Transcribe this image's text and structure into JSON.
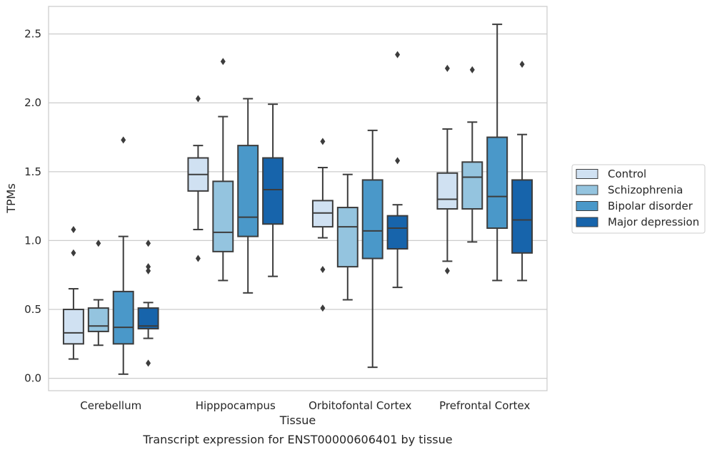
{
  "caption": "Transcript expression for ENST00000606401 by tissue",
  "chart_data": {
    "type": "boxplot",
    "xlabel": "Tissue",
    "ylabel": "TPMs",
    "ylim": [
      -0.09,
      2.7
    ],
    "yticks": [
      "0.0",
      "0.5",
      "1.0",
      "1.5",
      "2.0",
      "2.5"
    ],
    "grid": "horizontal",
    "legend_position": "right",
    "categories": [
      "Cerebellum",
      "Hipppocampus",
      "Orbitofontal Cortex",
      "Prefrontal Cortex"
    ],
    "series": [
      {
        "name": "Control",
        "color": "#d0e1f2",
        "boxes": [
          {
            "whislo": 0.14,
            "q1": 0.25,
            "med": 0.33,
            "q3": 0.5,
            "whishi": 0.65,
            "fliers": [
              0.91,
              1.08
            ]
          },
          {
            "whislo": 1.08,
            "q1": 1.36,
            "med": 1.48,
            "q3": 1.6,
            "whishi": 1.69,
            "fliers": [
              0.87,
              2.03
            ]
          },
          {
            "whislo": 1.02,
            "q1": 1.1,
            "med": 1.2,
            "q3": 1.29,
            "whishi": 1.53,
            "fliers": [
              0.51,
              0.79,
              1.72
            ]
          },
          {
            "whislo": 0.85,
            "q1": 1.23,
            "med": 1.3,
            "q3": 1.49,
            "whishi": 1.81,
            "fliers": [
              0.78,
              2.25
            ]
          }
        ]
      },
      {
        "name": "Schizophrenia",
        "color": "#94c4df",
        "boxes": [
          {
            "whislo": 0.24,
            "q1": 0.34,
            "med": 0.38,
            "q3": 0.51,
            "whishi": 0.57,
            "fliers": [
              0.98
            ]
          },
          {
            "whislo": 0.71,
            "q1": 0.92,
            "med": 1.06,
            "q3": 1.43,
            "whishi": 1.9,
            "fliers": [
              2.3
            ]
          },
          {
            "whislo": 0.57,
            "q1": 0.81,
            "med": 1.1,
            "q3": 1.24,
            "whishi": 1.48,
            "fliers": []
          },
          {
            "whislo": 0.99,
            "q1": 1.23,
            "med": 1.46,
            "q3": 1.57,
            "whishi": 1.86,
            "fliers": [
              2.24
            ]
          }
        ]
      },
      {
        "name": "Bipolar disorder",
        "color": "#4a98c9",
        "boxes": [
          {
            "whislo": 0.03,
            "q1": 0.25,
            "med": 0.37,
            "q3": 0.63,
            "whishi": 1.03,
            "fliers": [
              1.73
            ]
          },
          {
            "whislo": 0.62,
            "q1": 1.03,
            "med": 1.17,
            "q3": 1.69,
            "whishi": 2.03,
            "fliers": []
          },
          {
            "whislo": 0.08,
            "q1": 0.87,
            "med": 1.07,
            "q3": 1.44,
            "whishi": 1.8,
            "fliers": []
          },
          {
            "whislo": 0.71,
            "q1": 1.09,
            "med": 1.32,
            "q3": 1.75,
            "whishi": 2.57,
            "fliers": []
          }
        ]
      },
      {
        "name": "Major depression",
        "color": "#1764ab",
        "boxes": [
          {
            "whislo": 0.29,
            "q1": 0.36,
            "med": 0.38,
            "q3": 0.51,
            "whishi": 0.55,
            "fliers": [
              0.11,
              0.78,
              0.81,
              0.98
            ]
          },
          {
            "whislo": 0.74,
            "q1": 1.12,
            "med": 1.37,
            "q3": 1.6,
            "whishi": 1.99,
            "fliers": []
          },
          {
            "whislo": 0.66,
            "q1": 0.94,
            "med": 1.09,
            "q3": 1.18,
            "whishi": 1.26,
            "fliers": [
              1.58,
              2.35
            ]
          },
          {
            "whislo": 0.71,
            "q1": 0.91,
            "med": 1.15,
            "q3": 1.44,
            "whishi": 1.77,
            "fliers": [
              2.28
            ]
          }
        ]
      }
    ]
  }
}
